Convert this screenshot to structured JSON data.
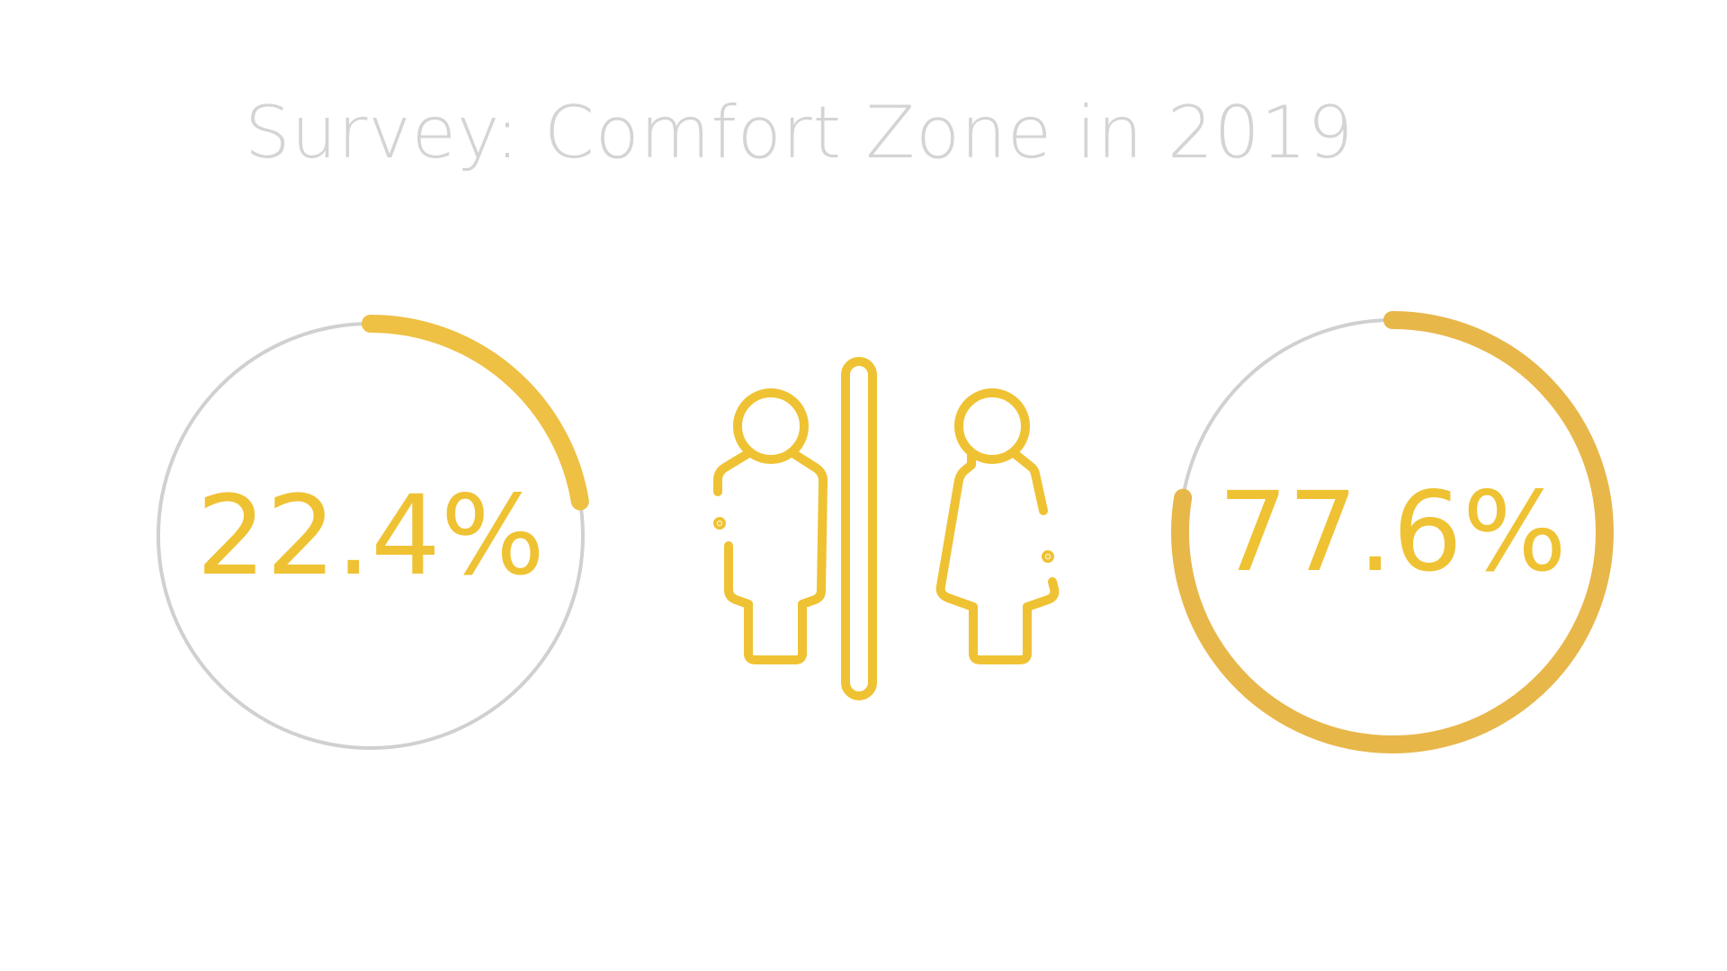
{
  "title": "Survey: Comfort Zone in 2019",
  "colors": {
    "accent": "#efc233",
    "ring_fill_left": "#eec043",
    "ring_fill_right": "#e8b74a",
    "track": "#d0d0d0",
    "title": "#d4d4d4"
  },
  "icons": {
    "center": "male-female-restroom-icon"
  },
  "chart_data": [
    {
      "type": "pie",
      "style": "donut-progress",
      "value": 22.4,
      "label": "22.4%"
    },
    {
      "type": "pie",
      "style": "donut-progress",
      "value": 77.6,
      "label": "77.6%"
    }
  ]
}
